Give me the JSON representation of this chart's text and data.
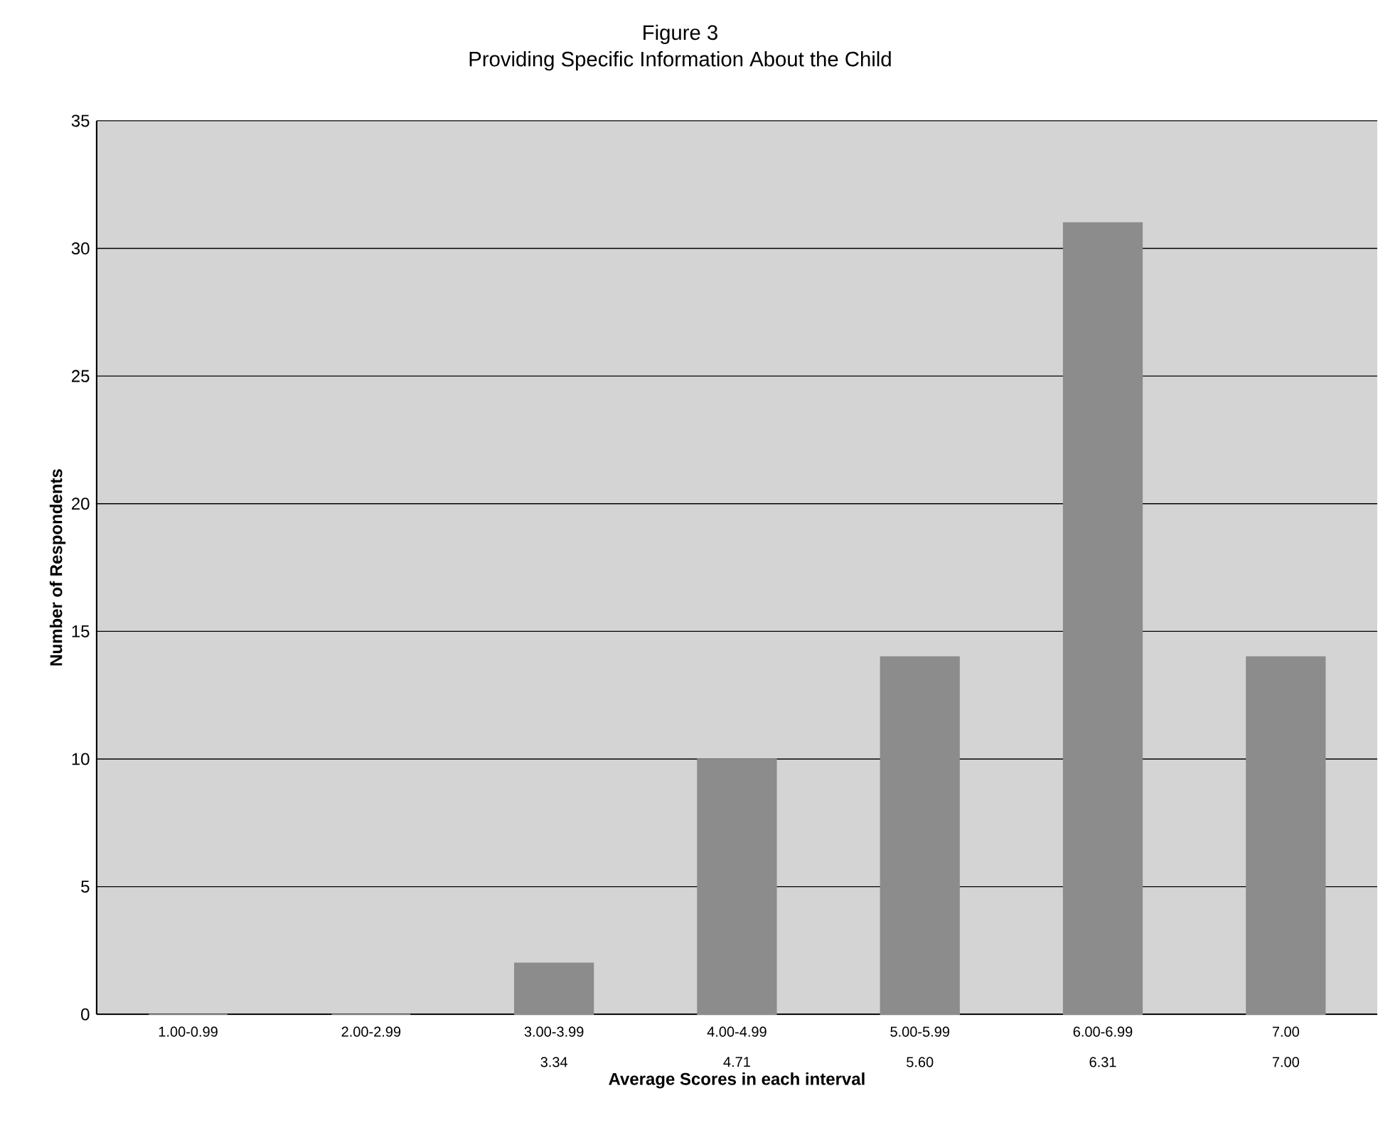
{
  "chart_data": {
    "type": "bar",
    "title": "Figure 3",
    "subtitle": "Providing Specific Information About the Child",
    "xlabel": "Average Scores in each interval",
    "ylabel": "Number of Respondents",
    "categories": [
      "1.00-0.99",
      "2.00-2.99",
      "3.00-3.99",
      "4.00-4.99",
      "5.00-5.99",
      "6.00-6.99",
      "7.00"
    ],
    "values": [
      0,
      0,
      2,
      10,
      14,
      31,
      14
    ],
    "color": "#8c8c8c",
    "ylim": [
      0,
      35
    ],
    "yticks": [
      0,
      5,
      10,
      15,
      20,
      25,
      30,
      35
    ],
    "grid": "y",
    "annotations": [
      "3.34",
      "4.71",
      "5.60",
      "6.31",
      "7.00"
    ]
  }
}
